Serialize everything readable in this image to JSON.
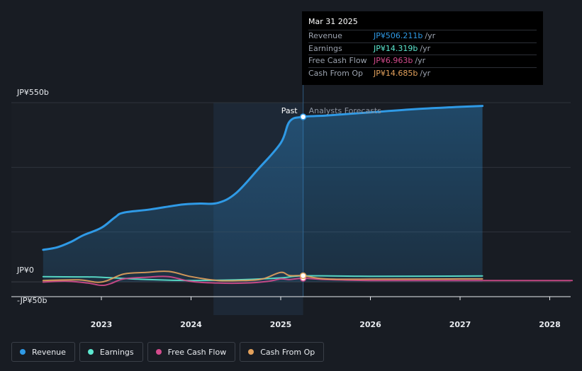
{
  "chart_data": {
    "type": "area",
    "x_ticks": [
      "2023",
      "2024",
      "2025",
      "2026",
      "2027",
      "2028"
    ],
    "y_ticks": [
      "JP¥550b",
      "JP¥0",
      "-JP¥50b"
    ],
    "ylim": [
      -50,
      550
    ],
    "region_labels": {
      "past": "Past",
      "forecast": "Analysts Forecasts"
    },
    "series": [
      {
        "name": "Revenue",
        "color": "#2f9ae6",
        "points": [
          [
            2022.35,
            95
          ],
          [
            2022.5,
            102
          ],
          [
            2022.65,
            118
          ],
          [
            2022.8,
            140
          ],
          [
            2023.0,
            163
          ],
          [
            2023.15,
            195
          ],
          [
            2023.25,
            210
          ],
          [
            2023.55,
            220
          ],
          [
            2023.9,
            235
          ],
          [
            2024.1,
            238
          ],
          [
            2024.3,
            240
          ],
          [
            2024.5,
            270
          ],
          [
            2024.75,
            345
          ],
          [
            2025.0,
            425
          ],
          [
            2025.1,
            492
          ],
          [
            2025.25,
            506.211
          ],
          [
            2025.5,
            510
          ],
          [
            2026.0,
            520
          ],
          [
            2026.5,
            530
          ],
          [
            2027.0,
            537
          ],
          [
            2027.25,
            540
          ]
        ]
      },
      {
        "name": "Earnings",
        "color": "#5de8d0",
        "points": [
          [
            2022.35,
            12
          ],
          [
            2022.75,
            11
          ],
          [
            2023.0,
            10
          ],
          [
            2023.5,
            3
          ],
          [
            2024.0,
            0
          ],
          [
            2024.5,
            2
          ],
          [
            2025.0,
            8
          ],
          [
            2025.25,
            14.319
          ],
          [
            2026.0,
            13
          ],
          [
            2027.25,
            14
          ]
        ]
      },
      {
        "name": "Free Cash Flow",
        "color": "#d44b8d",
        "points": [
          [
            2022.35,
            -5
          ],
          [
            2022.6,
            -2
          ],
          [
            2022.85,
            -8
          ],
          [
            2023.0,
            -15
          ],
          [
            2023.1,
            -10
          ],
          [
            2023.25,
            5
          ],
          [
            2023.5,
            10
          ],
          [
            2023.75,
            12
          ],
          [
            2024.0,
            -3
          ],
          [
            2024.3,
            -8
          ],
          [
            2024.6,
            -8
          ],
          [
            2024.85,
            -3
          ],
          [
            2025.0,
            5
          ],
          [
            2025.1,
            3
          ],
          [
            2025.25,
            6.963
          ],
          [
            2025.5,
            3
          ],
          [
            2026.0,
            0
          ],
          [
            2026.5,
            0
          ],
          [
            2027.0,
            0
          ],
          [
            2028.25,
            0
          ]
        ]
      },
      {
        "name": "Cash From Op",
        "color": "#e3a15c",
        "points": [
          [
            2022.35,
            0
          ],
          [
            2022.75,
            2
          ],
          [
            2023.0,
            -5
          ],
          [
            2023.25,
            20
          ],
          [
            2023.5,
            25
          ],
          [
            2023.75,
            28
          ],
          [
            2024.0,
            12
          ],
          [
            2024.3,
            0
          ],
          [
            2024.6,
            0
          ],
          [
            2024.8,
            5
          ],
          [
            2025.0,
            25
          ],
          [
            2025.1,
            15
          ],
          [
            2025.25,
            14.685
          ],
          [
            2025.5,
            5
          ],
          [
            2026.0,
            4
          ],
          [
            2027.0,
            5
          ],
          [
            2027.25,
            5
          ]
        ]
      }
    ]
  },
  "tooltip": {
    "date": "Mar 31 2025",
    "rows": [
      {
        "label": "Revenue",
        "value": "JP¥506.211b",
        "unit": "/yr",
        "color": "#2f9ae6"
      },
      {
        "label": "Earnings",
        "value": "JP¥14.319b",
        "unit": "/yr",
        "color": "#5de8d0"
      },
      {
        "label": "Free Cash Flow",
        "value": "JP¥6.963b",
        "unit": "/yr",
        "color": "#d44b8d"
      },
      {
        "label": "Cash From Op",
        "value": "JP¥14.685b",
        "unit": "/yr",
        "color": "#e3a15c"
      }
    ]
  },
  "legend": [
    {
      "label": "Revenue",
      "color": "#2f9ae6"
    },
    {
      "label": "Earnings",
      "color": "#5de8d0"
    },
    {
      "label": "Free Cash Flow",
      "color": "#d44b8d"
    },
    {
      "label": "Cash From Op",
      "color": "#e3a15c"
    }
  ]
}
